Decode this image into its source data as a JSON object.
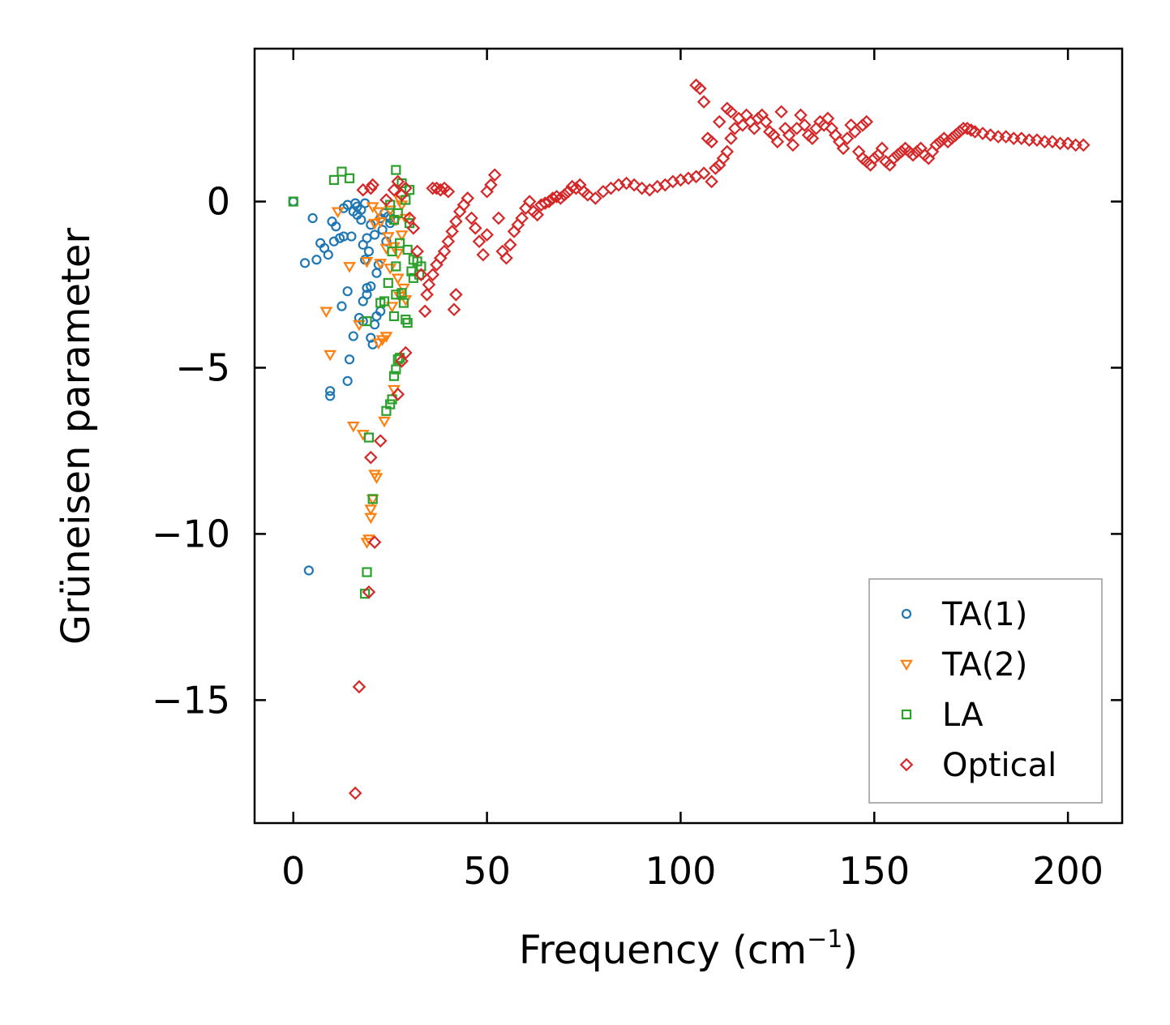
{
  "chart_data": {
    "type": "scatter",
    "title": "",
    "xlabel": "Frequency (cm",
    "xlabel_sup": "−1",
    "xlabel_end": ")",
    "ylabel": "Grüneisen parameter",
    "xlim": [
      -10,
      214
    ],
    "ylim": [
      -18.7,
      4.6
    ],
    "xticks": [
      0,
      50,
      100,
      150,
      200
    ],
    "xtick_labels": [
      "0",
      "50",
      "100",
      "150",
      "200"
    ],
    "yticks": [
      0,
      -5,
      -10,
      -15
    ],
    "ytick_labels": [
      "0",
      "−5",
      "−10",
      "−15"
    ],
    "legend_position": "lower-right",
    "grid": false,
    "series": [
      {
        "name": "TA(1)",
        "marker": "circle",
        "color": "#1f77b4",
        "points": [
          [
            0,
            0
          ],
          [
            3,
            -1.85
          ],
          [
            4,
            -11.1
          ],
          [
            6,
            -1.75
          ],
          [
            7,
            -1.25
          ],
          [
            8,
            -1.4
          ],
          [
            9,
            -1.6
          ],
          [
            9.5,
            -5.7
          ],
          [
            9.5,
            -5.85
          ],
          [
            10,
            -0.6
          ],
          [
            10.5,
            -1.2
          ],
          [
            12,
            -1.1
          ],
          [
            13,
            -0.2
          ],
          [
            13,
            -1.05
          ],
          [
            12.5,
            -3.15
          ],
          [
            14,
            -0.1
          ],
          [
            14,
            -2.7
          ],
          [
            14.5,
            -4.75
          ],
          [
            15,
            -1.05
          ],
          [
            15.5,
            -0.3
          ],
          [
            15.5,
            -4.05
          ],
          [
            16,
            -0.05
          ],
          [
            16.5,
            -0.4
          ],
          [
            17,
            -3.5
          ],
          [
            17.5,
            -0.25
          ],
          [
            18,
            -1.3
          ],
          [
            18,
            -3.0
          ],
          [
            18,
            -3.6
          ],
          [
            18.5,
            -0.05
          ],
          [
            18.5,
            -1.75
          ],
          [
            19,
            -1.1
          ],
          [
            19,
            -2.6
          ],
          [
            19,
            -2.8
          ],
          [
            19.5,
            -1.5
          ],
          [
            20,
            -0.7
          ],
          [
            20,
            -2.55
          ],
          [
            20,
            -4.1
          ],
          [
            20.5,
            -4.3
          ],
          [
            21,
            -1.0
          ],
          [
            21,
            -3.7
          ],
          [
            21.5,
            -2.15
          ],
          [
            21.5,
            -3.45
          ],
          [
            22,
            -1.9
          ],
          [
            22.5,
            -0.5
          ],
          [
            22.5,
            -3.3
          ],
          [
            23,
            -0.85
          ],
          [
            23.5,
            -0.35
          ],
          [
            24,
            -1.2
          ],
          [
            24.5,
            -0.45
          ],
          [
            25,
            -0.65
          ],
          [
            25,
            -0.5
          ],
          [
            14,
            -5.4
          ],
          [
            5,
            -0.5
          ],
          [
            11,
            -0.75
          ],
          [
            16.5,
            -0.15
          ],
          [
            17.5,
            -0.55
          ]
        ]
      },
      {
        "name": "TA(2)",
        "marker": "triangle-down",
        "color": "#ff7f0e",
        "points": [
          [
            8.5,
            -3.3
          ],
          [
            9.5,
            -4.6
          ],
          [
            11.5,
            -0.3
          ],
          [
            14.5,
            -1.95
          ],
          [
            15.5,
            -6.75
          ],
          [
            17,
            -3.7
          ],
          [
            18,
            -7.0
          ],
          [
            19,
            -10.25
          ],
          [
            19.5,
            -10.15
          ],
          [
            20,
            -9.5
          ],
          [
            20,
            -9.25
          ],
          [
            20.5,
            -8.95
          ],
          [
            21,
            -8.2
          ],
          [
            21.5,
            -8.3
          ],
          [
            22,
            -0.3
          ],
          [
            22,
            -4.25
          ],
          [
            22.5,
            -0.6
          ],
          [
            22.5,
            -1.85
          ],
          [
            23,
            -4.15
          ],
          [
            23.5,
            -6.6
          ],
          [
            24,
            -1.4
          ],
          [
            24,
            -4.05
          ],
          [
            24.5,
            -1.05
          ],
          [
            25,
            -0.25
          ],
          [
            25,
            -2.0
          ],
          [
            25.5,
            -3.15
          ],
          [
            26,
            -5.65
          ],
          [
            26,
            -1.35
          ],
          [
            26.5,
            -0.55
          ],
          [
            27,
            -1.55
          ],
          [
            27,
            -2.3
          ],
          [
            27.5,
            0.05
          ],
          [
            27.5,
            -2.85
          ],
          [
            28,
            -0.1
          ],
          [
            28,
            -1.0
          ],
          [
            28.5,
            -2.6
          ],
          [
            29,
            -2.95
          ],
          [
            29,
            -0.5
          ],
          [
            21,
            -0.65
          ],
          [
            20.5,
            -0.15
          ],
          [
            19,
            -1.8
          ]
        ]
      },
      {
        "name": "LA",
        "marker": "square",
        "color": "#2ca02c",
        "points": [
          [
            0,
            0
          ],
          [
            10.5,
            0.65
          ],
          [
            12.5,
            0.9
          ],
          [
            14.5,
            0.7
          ],
          [
            18.5,
            -11.8
          ],
          [
            19,
            -11.15
          ],
          [
            19,
            -3.6
          ],
          [
            19.5,
            -7.1
          ],
          [
            20.5,
            -8.95
          ],
          [
            22.5,
            -3.05
          ],
          [
            23.5,
            -3.0
          ],
          [
            24,
            -6.3
          ],
          [
            24.5,
            -2.45
          ],
          [
            25,
            -6.1
          ],
          [
            25,
            -0.1
          ],
          [
            25.5,
            -5.95
          ],
          [
            26,
            -0.55
          ],
          [
            26,
            -3.45
          ],
          [
            26,
            -5.25
          ],
          [
            26.5,
            -5.05
          ],
          [
            26.5,
            0.95
          ],
          [
            26.5,
            -1.95
          ],
          [
            27,
            -4.75
          ],
          [
            27,
            -0.35
          ],
          [
            27.5,
            -4.7
          ],
          [
            27.5,
            -1.25
          ],
          [
            28,
            0.55
          ],
          [
            28,
            -2.75
          ],
          [
            28.5,
            -3.05
          ],
          [
            29,
            0.05
          ],
          [
            29,
            -3.55
          ],
          [
            29.5,
            -1.45
          ],
          [
            29.5,
            -3.65
          ],
          [
            30,
            -0.65
          ],
          [
            30,
            0.35
          ],
          [
            30.5,
            -2.1
          ],
          [
            31,
            -1.75
          ],
          [
            31,
            -2.3
          ],
          [
            32,
            -1.8
          ],
          [
            32.5,
            -2.2
          ],
          [
            33,
            -1.95
          ],
          [
            25.5,
            -1.5
          ],
          [
            26.5,
            -2.8
          ]
        ]
      },
      {
        "name": "Optical",
        "marker": "diamond",
        "color": "#d62728",
        "points": [
          [
            16,
            -17.8
          ],
          [
            17,
            -14.6
          ],
          [
            19.5,
            -11.75
          ],
          [
            20,
            -7.7
          ],
          [
            21,
            -10.25
          ],
          [
            20,
            0.4
          ],
          [
            20.5,
            0.5
          ],
          [
            22.5,
            -7.2
          ],
          [
            27,
            -5.8
          ],
          [
            28,
            -4.8
          ],
          [
            29,
            -4.55
          ],
          [
            18,
            0.35
          ],
          [
            24,
            0.05
          ],
          [
            26,
            0.35
          ],
          [
            27,
            0.6
          ],
          [
            28,
            0.2
          ],
          [
            29,
            0.4
          ],
          [
            30,
            -0.5
          ],
          [
            31,
            -0.8
          ],
          [
            32,
            -1.5
          ],
          [
            33,
            -2.2
          ],
          [
            34,
            -3.3
          ],
          [
            34.5,
            -2.8
          ],
          [
            35,
            -2.5
          ],
          [
            36,
            -2.2
          ],
          [
            37,
            -1.9
          ],
          [
            38,
            -1.7
          ],
          [
            39,
            -1.5
          ],
          [
            40,
            -1.2
          ],
          [
            41,
            -0.9
          ],
          [
            42,
            -0.6
          ],
          [
            43,
            -0.3
          ],
          [
            44,
            -0.1
          ],
          [
            45,
            0.1
          ],
          [
            46,
            -0.5
          ],
          [
            47,
            -0.8
          ],
          [
            48,
            -1.2
          ],
          [
            49,
            -1.6
          ],
          [
            50,
            -1.0
          ],
          [
            36,
            0.4
          ],
          [
            37,
            0.4
          ],
          [
            38,
            0.35
          ],
          [
            39,
            0.4
          ],
          [
            40,
            0.3
          ],
          [
            41.5,
            -3.25
          ],
          [
            42,
            -2.8
          ],
          [
            50,
            0.3
          ],
          [
            51,
            0.5
          ],
          [
            52,
            0.8
          ],
          [
            53,
            -0.5
          ],
          [
            54,
            -1.5
          ],
          [
            55,
            -1.7
          ],
          [
            56,
            -1.3
          ],
          [
            57,
            -0.9
          ],
          [
            58,
            -0.7
          ],
          [
            59,
            -0.5
          ],
          [
            60,
            -0.2
          ],
          [
            61,
            0.0
          ],
          [
            62,
            -0.3
          ],
          [
            63,
            -0.4
          ],
          [
            64,
            -0.1
          ],
          [
            65,
            -0.05
          ],
          [
            66,
            0.0
          ],
          [
            67,
            0.1
          ],
          [
            68,
            0.15
          ],
          [
            69,
            0.1
          ],
          [
            70,
            0.2
          ],
          [
            71,
            0.3
          ],
          [
            72,
            0.45
          ],
          [
            73,
            0.4
          ],
          [
            74,
            0.5
          ],
          [
            75,
            0.3
          ],
          [
            76,
            0.2
          ],
          [
            78,
            0.1
          ],
          [
            80,
            0.3
          ],
          [
            82,
            0.4
          ],
          [
            84,
            0.5
          ],
          [
            86,
            0.55
          ],
          [
            88,
            0.5
          ],
          [
            90,
            0.4
          ],
          [
            92,
            0.35
          ],
          [
            94,
            0.45
          ],
          [
            96,
            0.5
          ],
          [
            98,
            0.6
          ],
          [
            100,
            0.65
          ],
          [
            102,
            0.7
          ],
          [
            104,
            0.75
          ],
          [
            106,
            0.85
          ],
          [
            108,
            0.6
          ],
          [
            109,
            1.0
          ],
          [
            110,
            1.1
          ],
          [
            111,
            1.3
          ],
          [
            112,
            1.5
          ],
          [
            113,
            1.9
          ],
          [
            114,
            2.2
          ],
          [
            115,
            2.5
          ],
          [
            116,
            2.3
          ],
          [
            117,
            2.6
          ],
          [
            118,
            2.4
          ],
          [
            119,
            2.2
          ],
          [
            120,
            2.5
          ],
          [
            121,
            2.6
          ],
          [
            122,
            2.4
          ],
          [
            123,
            2.1
          ],
          [
            124,
            2.0
          ],
          [
            125,
            1.8
          ],
          [
            126,
            2.7
          ],
          [
            127,
            2.2
          ],
          [
            128,
            2.0
          ],
          [
            129,
            1.7
          ],
          [
            130,
            2.2
          ],
          [
            131,
            2.6
          ],
          [
            132,
            2.3
          ],
          [
            133,
            2.0
          ],
          [
            134,
            1.9
          ],
          [
            135,
            2.2
          ],
          [
            136,
            2.4
          ],
          [
            137,
            2.3
          ],
          [
            138,
            2.5
          ],
          [
            139,
            2.2
          ],
          [
            140,
            2.0
          ],
          [
            141,
            1.8
          ],
          [
            142,
            1.6
          ],
          [
            143,
            1.9
          ],
          [
            144,
            2.3
          ],
          [
            145,
            2.1
          ],
          [
            146,
            1.5
          ],
          [
            147,
            1.3
          ],
          [
            148,
            1.2
          ],
          [
            149,
            1.1
          ],
          [
            150,
            1.3
          ],
          [
            151,
            1.4
          ],
          [
            152,
            1.6
          ],
          [
            153,
            1.2
          ],
          [
            154,
            1.1
          ],
          [
            155,
            1.3
          ],
          [
            156,
            1.4
          ],
          [
            157,
            1.5
          ],
          [
            158,
            1.6
          ],
          [
            159,
            1.5
          ],
          [
            160,
            1.4
          ],
          [
            161,
            1.5
          ],
          [
            162,
            1.6
          ],
          [
            163,
            1.4
          ],
          [
            164,
            1.3
          ],
          [
            165,
            1.5
          ],
          [
            166,
            1.7
          ],
          [
            167,
            1.8
          ],
          [
            168,
            1.9
          ],
          [
            169,
            1.8
          ],
          [
            170,
            1.9
          ],
          [
            171,
            2.0
          ],
          [
            172,
            2.1
          ],
          [
            173,
            2.2
          ],
          [
            174,
            2.2
          ],
          [
            175,
            2.15
          ],
          [
            176,
            2.1
          ],
          [
            178,
            2.05
          ],
          [
            180,
            2.0
          ],
          [
            182,
            1.95
          ],
          [
            184,
            1.95
          ],
          [
            186,
            1.9
          ],
          [
            188,
            1.9
          ],
          [
            190,
            1.85
          ],
          [
            192,
            1.85
          ],
          [
            194,
            1.8
          ],
          [
            196,
            1.8
          ],
          [
            198,
            1.75
          ],
          [
            200,
            1.75
          ],
          [
            202,
            1.7
          ],
          [
            204,
            1.7
          ],
          [
            104,
            3.5
          ],
          [
            105,
            3.4
          ],
          [
            106,
            3.0
          ],
          [
            107,
            1.9
          ],
          [
            108,
            1.8
          ],
          [
            110,
            2.4
          ],
          [
            112,
            2.8
          ],
          [
            113,
            2.7
          ],
          [
            147,
            2.3
          ],
          [
            148,
            2.4
          ]
        ]
      }
    ]
  }
}
